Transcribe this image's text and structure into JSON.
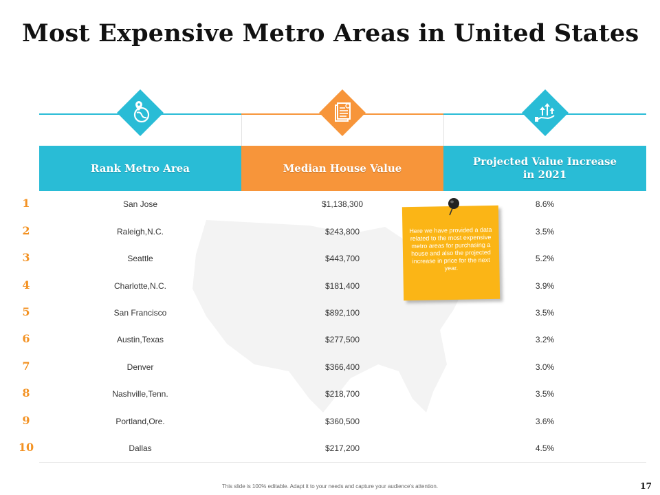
{
  "title": "Most Expensive Metro Areas in United States",
  "colors": {
    "blue": "#29bcd6",
    "orange": "#f7953a",
    "note": "#fbb516",
    "rank": "#f39223"
  },
  "icons": [
    "location-globe-icon",
    "document-icon",
    "hand-growth-icon"
  ],
  "headers": [
    "Rank Metro Area",
    "Median House Value",
    "Projected Value Increase in 2021"
  ],
  "rows": [
    {
      "rank": "1",
      "area": "San Jose",
      "value": "$1,138,300",
      "increase": "8.6%"
    },
    {
      "rank": "2",
      "area": "Raleigh,N.C.",
      "value": "$243,800",
      "increase": "3.5%"
    },
    {
      "rank": "3",
      "area": "Seattle",
      "value": "$443,700",
      "increase": "5.2%"
    },
    {
      "rank": "4",
      "area": "Charlotte,N.C.",
      "value": "$181,400",
      "increase": "3.9%"
    },
    {
      "rank": "5",
      "area": "San Francisco",
      "value": "$892,100",
      "increase": "3.5%"
    },
    {
      "rank": "6",
      "area": "Austin,Texas",
      "value": "$277,500",
      "increase": "3.2%"
    },
    {
      "rank": "7",
      "area": "Denver",
      "value": "$366,400",
      "increase": "3.0%"
    },
    {
      "rank": "8",
      "area": "Nashville,Tenn.",
      "value": "$218,700",
      "increase": "3.5%"
    },
    {
      "rank": "9",
      "area": "Portland,Ore.",
      "value": "$360,500",
      "increase": "3.6%"
    },
    {
      "rank": "10",
      "area": "Dallas",
      "value": "$217,200",
      "increase": "4.5%"
    }
  ],
  "note": "Here we have provided a data related to the most expensive metro areas for purchasing a house and also the projected increase in price for the next year.",
  "footer": "This slide is 100% editable. Adapt it to your needs and capture your audience's attention.",
  "page_number": "17"
}
